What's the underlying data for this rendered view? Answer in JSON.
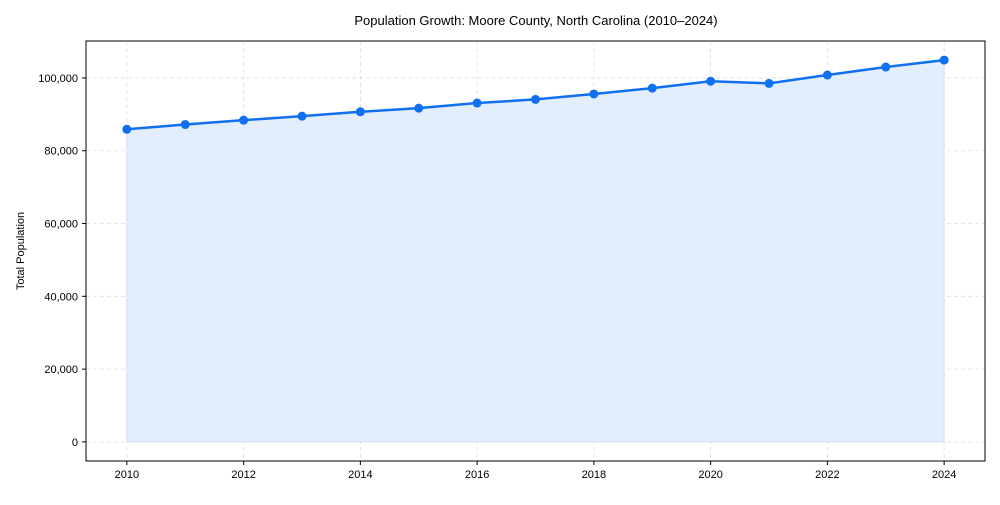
{
  "chart_data": {
    "type": "line",
    "title": "Population Growth: Moore County, North Carolina (2010–2024)",
    "xlabel": "",
    "ylabel": "Total Population",
    "x": [
      2010,
      2011,
      2012,
      2013,
      2014,
      2015,
      2016,
      2017,
      2018,
      2019,
      2020,
      2021,
      2022,
      2023,
      2024
    ],
    "series": [
      {
        "name": "Total Population",
        "values": [
          85900,
          87200,
          88400,
          89500,
          90700,
          91700,
          93100,
          94100,
          95600,
          97200,
          99100,
          98500,
          100800,
          103000,
          104900
        ]
      }
    ],
    "xticks": [
      2010,
      2012,
      2014,
      2016,
      2018,
      2020,
      2022,
      2024
    ],
    "xtick_labels": [
      "2010",
      "2012",
      "2014",
      "2016",
      "2018",
      "2020",
      "2022",
      "2024"
    ],
    "yticks": [
      0,
      20000,
      40000,
      60000,
      80000,
      100000
    ],
    "ytick_labels": [
      "0",
      "20,000",
      "40,000",
      "60,000",
      "80,000",
      "100,000"
    ],
    "xlim": [
      2009.3,
      2024.7
    ],
    "ylim": [
      -5245,
      110150
    ],
    "grid": true,
    "fill_under": true,
    "colors": {
      "line": "#1070f0",
      "fill": "#e3eefd",
      "grid": "#dddddd"
    }
  }
}
